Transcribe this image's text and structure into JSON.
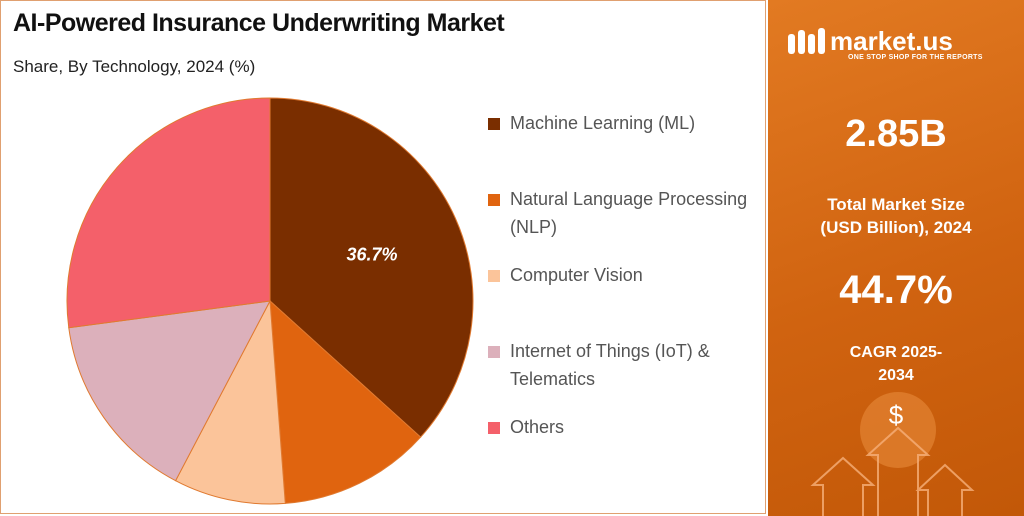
{
  "chart_data": {
    "type": "pie",
    "title": "AI-Powered Insurance Underwriting Market",
    "subtitle": "Share, By Technology, 2024 (%)",
    "categories": [
      "Machine Learning (ML)",
      "Natural Language Processing (NLP)",
      "Computer Vision",
      "Internet of Things (IoT) & Telematics",
      "Others"
    ],
    "values": [
      36.7,
      12.1,
      8.9,
      15.2,
      27.1
    ],
    "value_labels": [
      "36.7%",
      null,
      null,
      null,
      null
    ],
    "colors": [
      "#7a2e00",
      "#e0640f",
      "#fbc49a",
      "#dcb0bb",
      "#f4606a"
    ]
  },
  "panel": {
    "brand": "market.us",
    "tagline": "ONE STOP SHOP FOR THE REPORTS",
    "stats": [
      {
        "value": "2.85B",
        "label": "Total Market Size (USD Billion), 2024"
      },
      {
        "value": "44.7%",
        "label": "CAGR 2025-2034"
      }
    ],
    "symbol": "$"
  }
}
